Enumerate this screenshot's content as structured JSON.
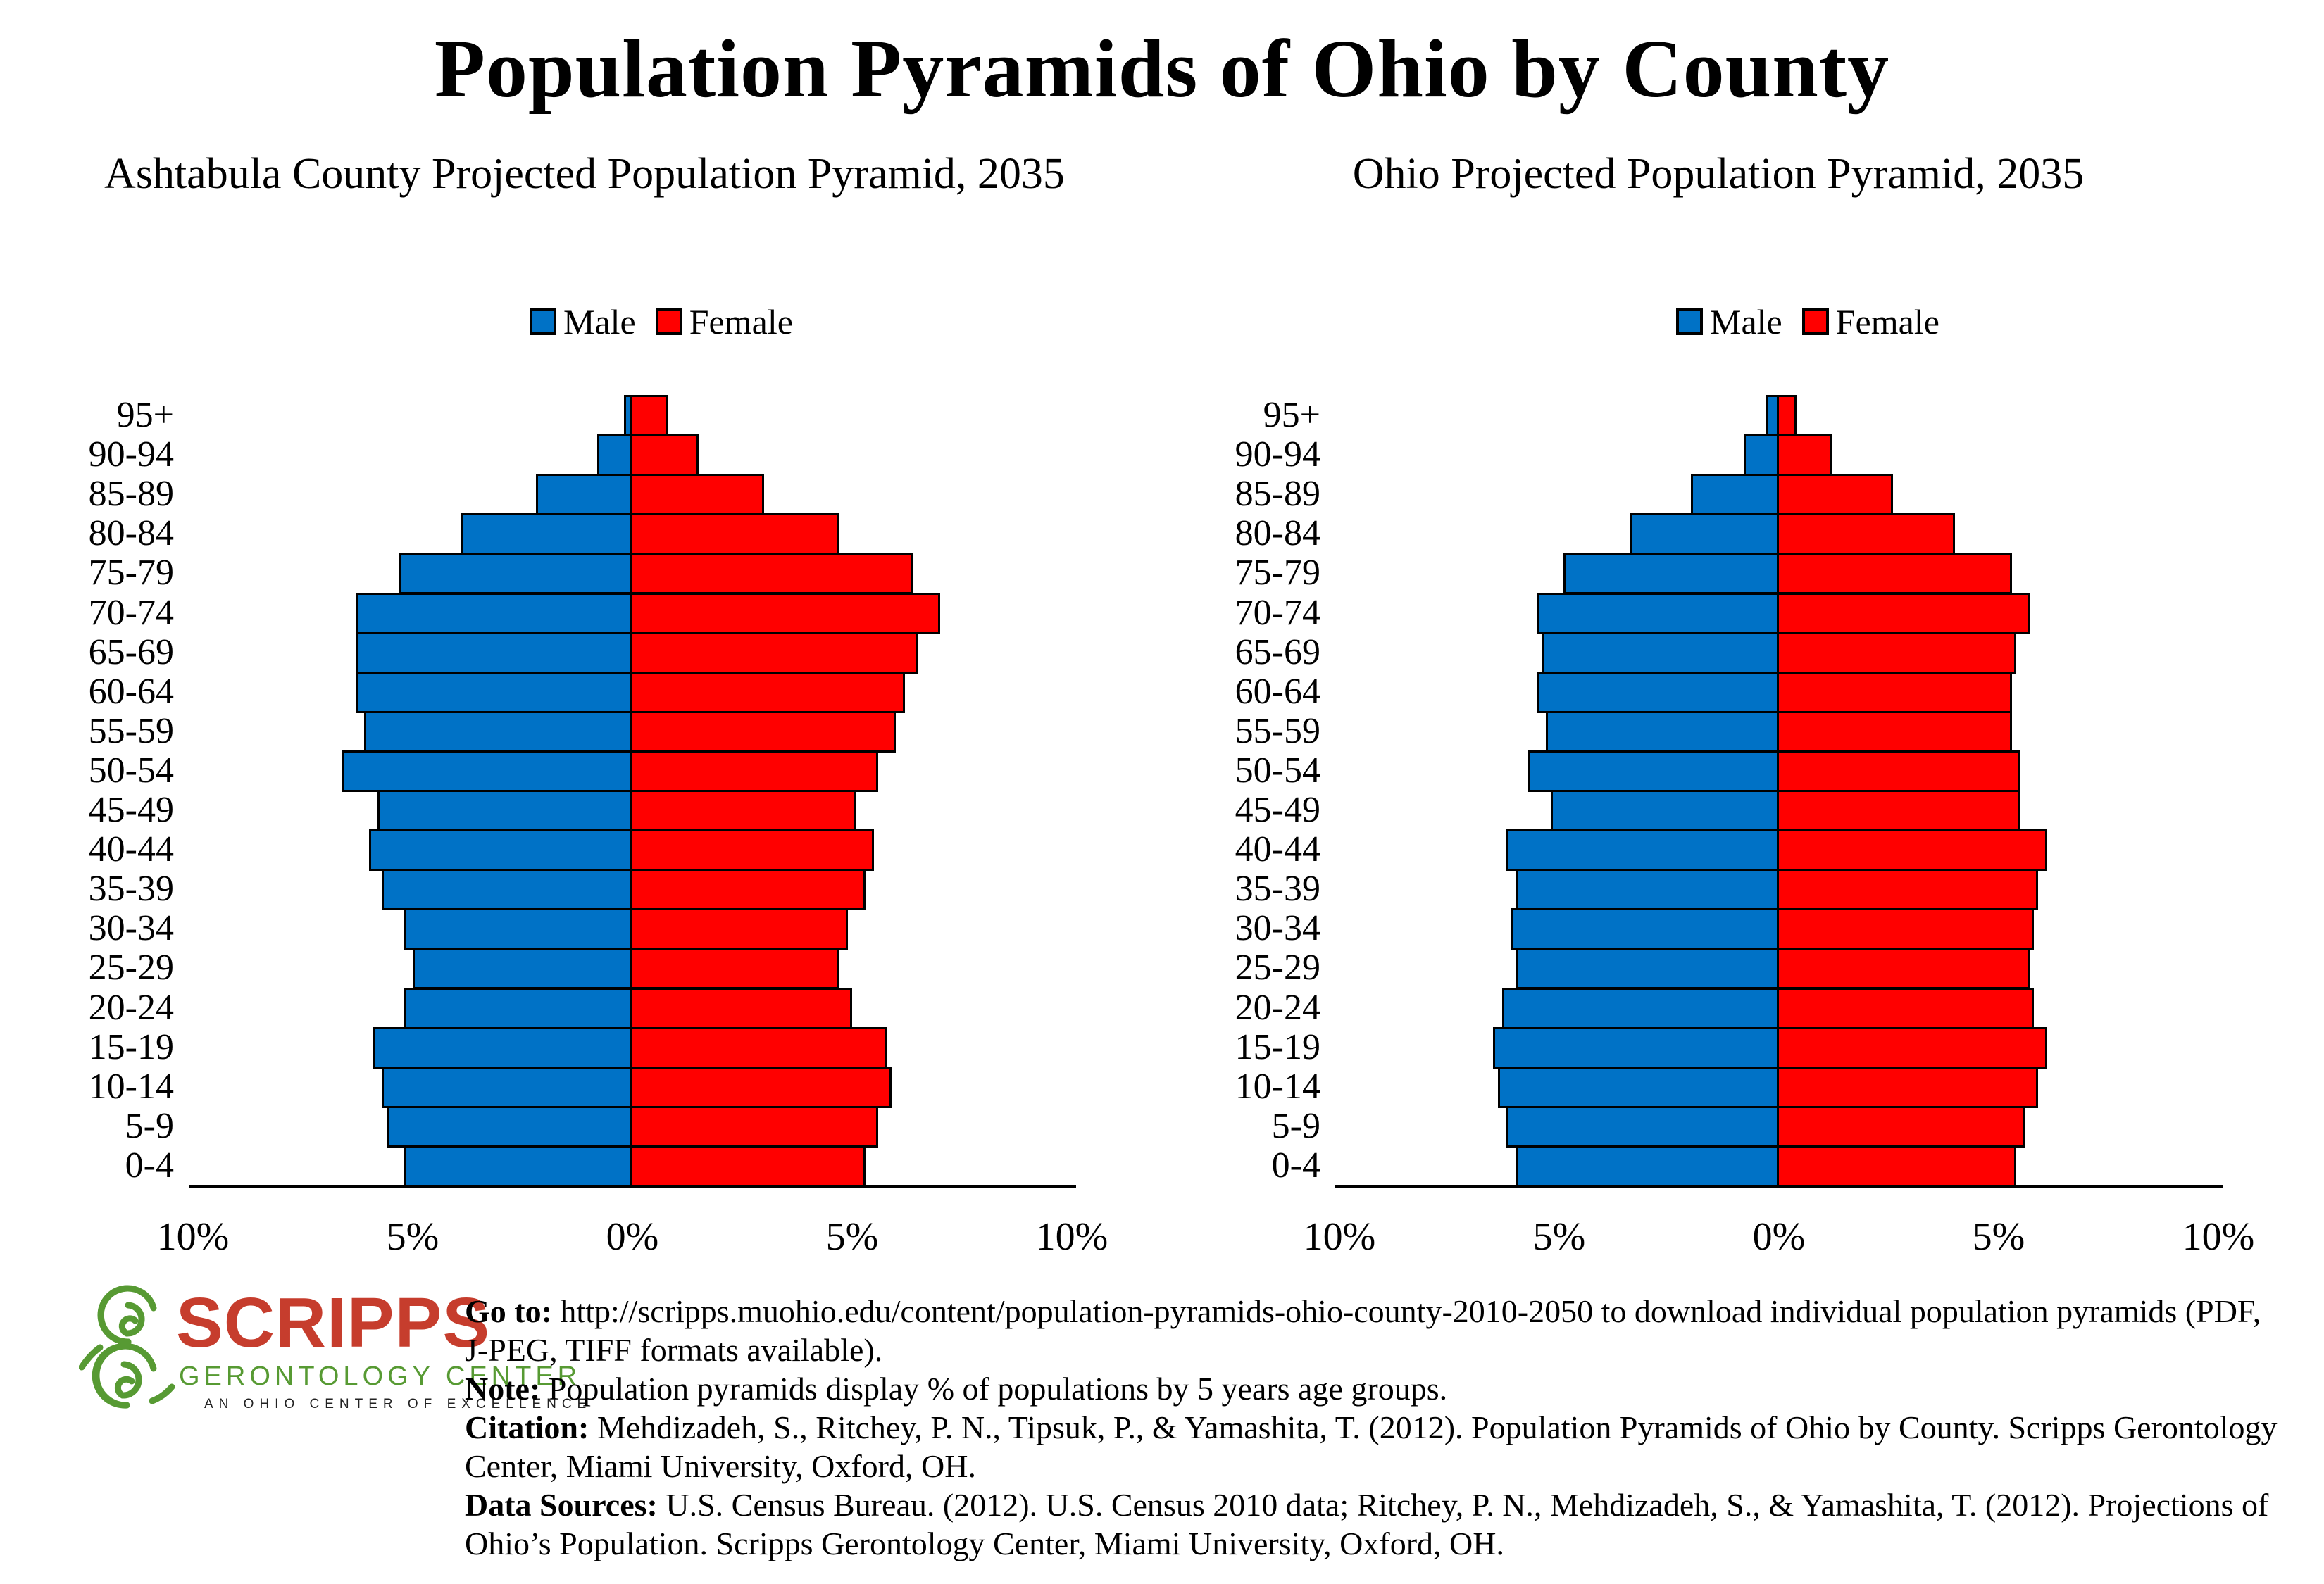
{
  "title": "Population Pyramids of Ohio by County",
  "legend": {
    "male_label": "Male",
    "female_label": "Female"
  },
  "axis": {
    "tick_labels": [
      "10%",
      "5%",
      "0%",
      "5%",
      "10%"
    ]
  },
  "chart_data": [
    {
      "type": "bar",
      "subtype": "population-pyramid",
      "title": "Ashtabula County Projected Population Pyramid, 2035",
      "legend": [
        "Male",
        "Female"
      ],
      "age_groups": [
        "95+",
        "90-94",
        "85-89",
        "80-84",
        "75-79",
        "70-74",
        "65-69",
        "60-64",
        "55-59",
        "50-54",
        "45-49",
        "40-44",
        "35-39",
        "30-34",
        "25-29",
        "20-24",
        "15-19",
        "10-14",
        "5-9",
        "0-4"
      ],
      "series": [
        {
          "name": "Male",
          "unit": "% of population",
          "values": [
            0.2,
            0.8,
            2.2,
            3.9,
            5.3,
            6.3,
            6.3,
            6.3,
            6.1,
            6.6,
            5.8,
            6.0,
            5.7,
            5.2,
            5.0,
            5.2,
            5.9,
            5.7,
            5.6,
            5.2
          ]
        },
        {
          "name": "Female",
          "unit": "% of population",
          "values": [
            0.8,
            1.5,
            3.0,
            4.7,
            6.4,
            7.0,
            6.5,
            6.2,
            6.0,
            5.6,
            5.1,
            5.5,
            5.3,
            4.9,
            4.7,
            5.0,
            5.8,
            5.9,
            5.6,
            5.3
          ]
        }
      ],
      "x_tick_labels": [
        "10%",
        "5%",
        "0%",
        "5%",
        "10%"
      ],
      "x_range_pct": [
        -10,
        10
      ],
      "grid": false,
      "legend_position": "top",
      "colors": {
        "male": "#0072C6",
        "female": "#FF0000",
        "bar_border": "#000000"
      }
    },
    {
      "type": "bar",
      "subtype": "population-pyramid",
      "title": "Ohio Projected Population Pyramid, 2035",
      "legend": [
        "Male",
        "Female"
      ],
      "age_groups": [
        "95+",
        "90-94",
        "85-89",
        "80-84",
        "75-79",
        "70-74",
        "65-69",
        "60-64",
        "55-59",
        "50-54",
        "45-49",
        "40-44",
        "35-39",
        "30-34",
        "25-29",
        "20-24",
        "15-19",
        "10-14",
        "5-9",
        "0-4"
      ],
      "series": [
        {
          "name": "Male",
          "unit": "% of population",
          "values": [
            0.3,
            0.8,
            2.0,
            3.4,
            4.9,
            5.5,
            5.4,
            5.5,
            5.3,
            5.7,
            5.2,
            6.2,
            6.0,
            6.1,
            6.0,
            6.3,
            6.5,
            6.4,
            6.2,
            6.0
          ]
        },
        {
          "name": "Female",
          "unit": "% of population",
          "values": [
            0.4,
            1.2,
            2.6,
            4.0,
            5.3,
            5.7,
            5.4,
            5.3,
            5.3,
            5.5,
            5.5,
            6.1,
            5.9,
            5.8,
            5.7,
            5.8,
            6.1,
            5.9,
            5.6,
            5.4
          ]
        }
      ],
      "x_tick_labels": [
        "10%",
        "5%",
        "0%",
        "5%",
        "10%"
      ],
      "x_range_pct": [
        -10,
        10
      ],
      "grid": false,
      "legend_position": "top",
      "colors": {
        "male": "#0072C6",
        "female": "#FF0000",
        "bar_border": "#000000"
      }
    }
  ],
  "logo": {
    "name": "SCRIPPS",
    "sub": "GERONTOLOGY  CENTER",
    "tagline": "AN OHIO CENTER OF EXCELLENCE",
    "colors": {
      "red": "#C63D2D",
      "green": "#579A33"
    }
  },
  "footer": {
    "lines": [
      {
        "bold": "Go to:",
        "text": " http://scripps.muohio.edu/content/population-pyramids-ohio-county-2010-2050 to download individual population pyramids (PDF,"
      },
      {
        "bold": "",
        "text": "J-PEG, TIFF formats available)."
      },
      {
        "bold": "Note:",
        "text": " Population pyramids display % of populations by 5 years age groups."
      },
      {
        "bold": "Citation:",
        "text": " Mehdizadeh, S., Ritchey, P. N., Tipsuk, P., & Yamashita, T. (2012). Population Pyramids of Ohio by County. Scripps Gerontology"
      },
      {
        "bold": "",
        "text": "Center, Miami University, Oxford, OH."
      },
      {
        "bold": "Data Sources:",
        "text": " U.S. Census Bureau. (2012). U.S. Census 2010 data; Ritchey, P. N., Mehdizadeh, S., & Yamashita, T. (2012). Projections of"
      },
      {
        "bold": "",
        "text": "Ohio’s Population. Scripps Gerontology Center, Miami University, Oxford, OH."
      }
    ]
  }
}
